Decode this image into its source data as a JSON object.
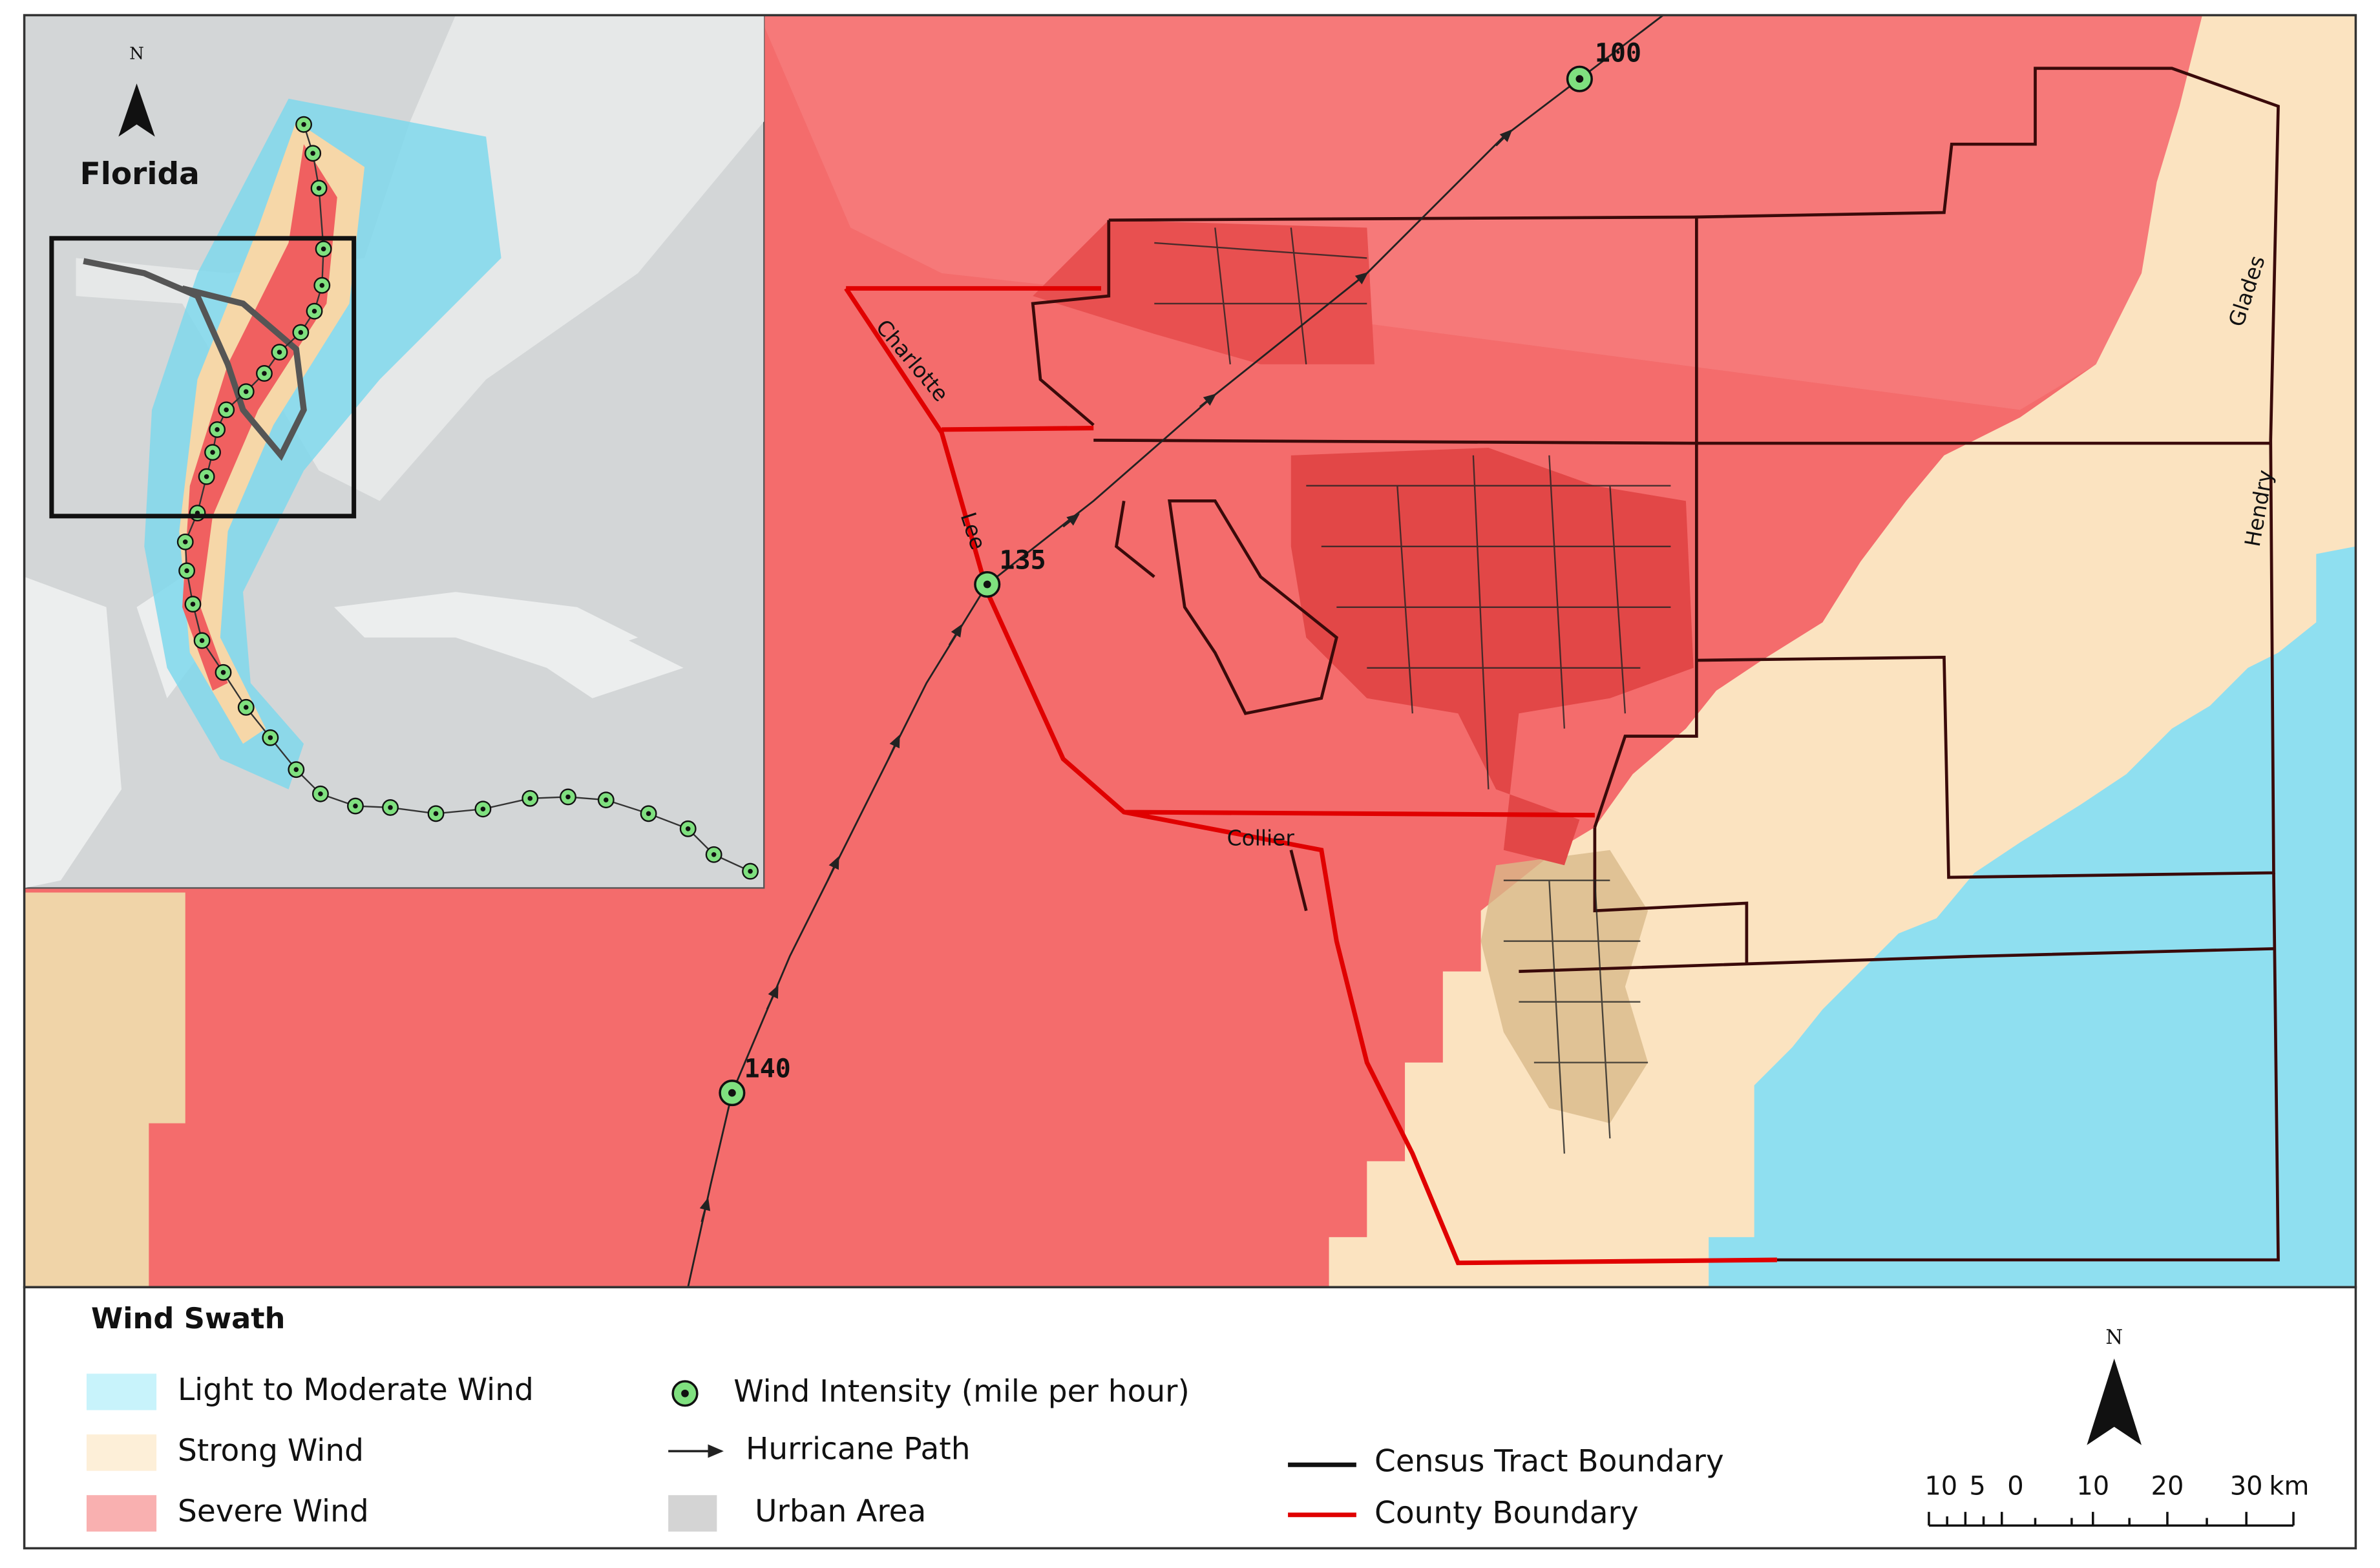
{
  "map": {
    "inset": {
      "title": "Florida",
      "north": "N"
    },
    "county_labels": [
      "Charlotte",
      "Lee",
      "Collier",
      "Glades",
      "Hendry"
    ],
    "intensity_labels": [
      100,
      135,
      140
    ]
  },
  "legend": {
    "title": "Wind Swath",
    "items": [
      "Light to Moderate Wind",
      "Strong Wind",
      "Severe Wind",
      "Wind Intensity (mile per hour)",
      "Hurricane Path",
      "Urban Area",
      "Census Tract Boundary",
      "County Boundary"
    ]
  },
  "scale_bar": {
    "north": "N",
    "labels": [
      10,
      5,
      0,
      10,
      20,
      30
    ],
    "unit": "km"
  }
}
